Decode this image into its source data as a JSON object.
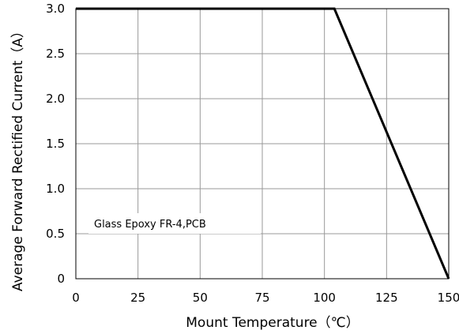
{
  "chart_data": {
    "type": "line",
    "xlabel": "Mount Temperature（℃）",
    "ylabel": "Average Forward Rectified Current（A）",
    "xlim": [
      0,
      150
    ],
    "ylim": [
      0,
      3.0
    ],
    "x_ticks": [
      0,
      25,
      50,
      75,
      100,
      125,
      150
    ],
    "x_tick_labels": [
      "0",
      "25",
      "50",
      "75",
      "100",
      "125",
      "150"
    ],
    "y_ticks": [
      0,
      0.5,
      1.0,
      1.5,
      2.0,
      2.5,
      3.0
    ],
    "y_tick_labels": [
      "0",
      "0.5",
      "1.0",
      "1.5",
      "2.0",
      "2.5",
      "3.0"
    ],
    "grid": true,
    "series": [
      {
        "x": [
          0,
          104,
          150
        ],
        "y": [
          3.0,
          3.0,
          0
        ]
      }
    ],
    "annotation": "Glass Epoxy FR-4,PCB",
    "colors": {
      "line": "#000000",
      "grid": "#999999",
      "frame": "#000000"
    }
  }
}
